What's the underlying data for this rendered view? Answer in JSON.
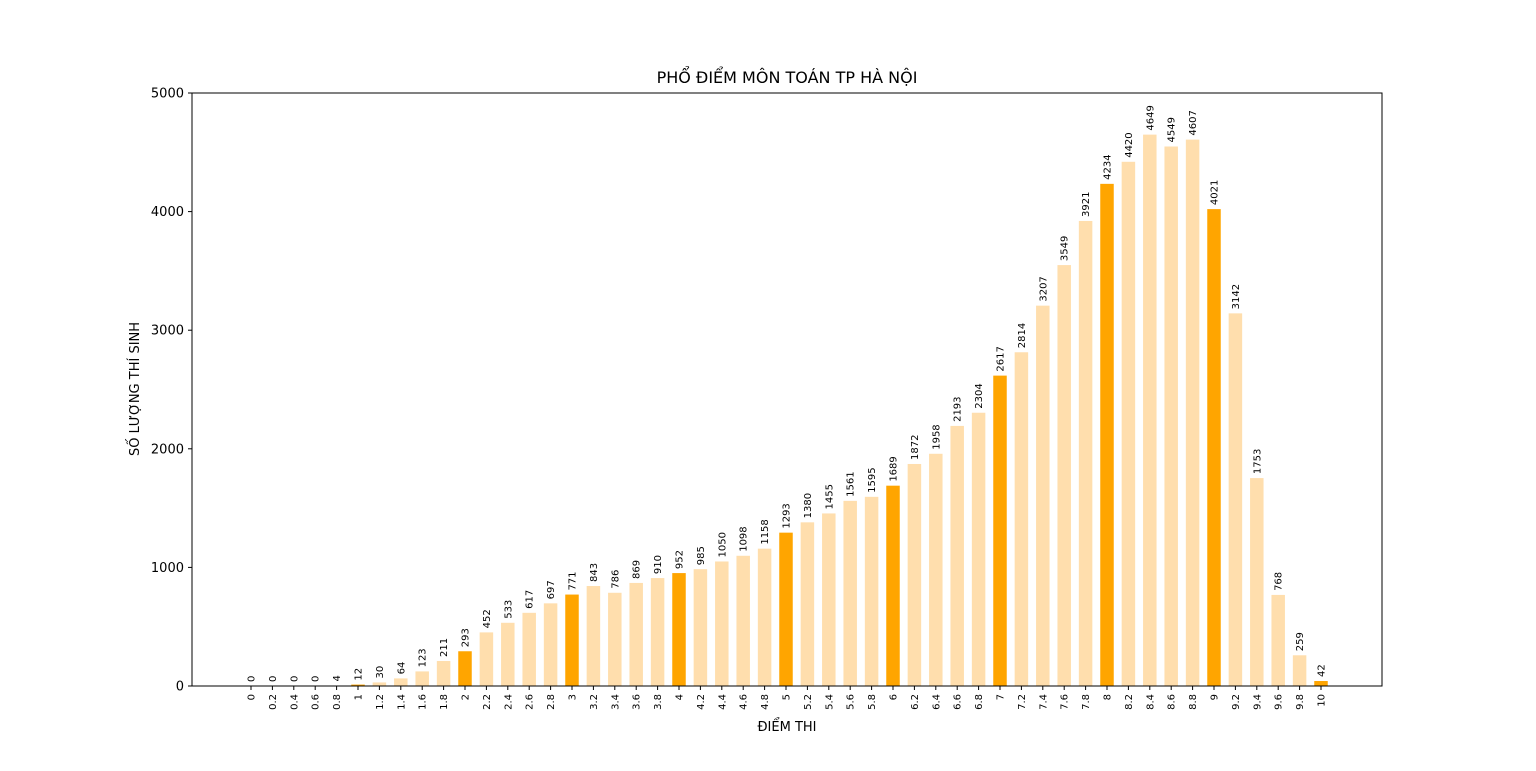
{
  "chart_data": {
    "type": "bar",
    "title": "PHỔ ĐIỂM MÔN TOÁN TP HÀ NỘI",
    "xlabel": "ĐIỂM THI",
    "ylabel": "SỐ LƯỢNG THÍ SINH",
    "ylim": [
      0,
      5000
    ],
    "yticks": [
      "0",
      "1000",
      "2000",
      "3000",
      "4000",
      "5000"
    ],
    "ytick_values": [
      0,
      1000,
      2000,
      3000,
      4000,
      5000
    ],
    "grid": false,
    "categories": [
      "0",
      "0.2",
      "0.4",
      "0.6",
      "0.8",
      "1",
      "1.2",
      "1.4",
      "1.6",
      "1.8",
      "2",
      "2.2",
      "2.4",
      "2.6",
      "2.8",
      "3",
      "3.2",
      "3.4",
      "3.6",
      "3.8",
      "4",
      "4.2",
      "4.4",
      "4.6",
      "4.8",
      "5",
      "5.2",
      "5.4",
      "5.6",
      "5.8",
      "6",
      "6.2",
      "6.4",
      "6.6",
      "6.8",
      "7",
      "7.2",
      "7.4",
      "7.6",
      "7.8",
      "8",
      "8.2",
      "8.4",
      "8.6",
      "8.8",
      "9",
      "9.2",
      "9.4",
      "9.6",
      "9.8",
      "10"
    ],
    "values": [
      0,
      0,
      0,
      0,
      4,
      12,
      30,
      64,
      123,
      211,
      293,
      452,
      533,
      617,
      697,
      771,
      843,
      786,
      869,
      910,
      952,
      985,
      1050,
      1098,
      1158,
      1293,
      1380,
      1455,
      1561,
      1595,
      1689,
      1872,
      1958,
      2193,
      2304,
      2617,
      2814,
      3207,
      3549,
      3921,
      4234,
      4420,
      4649,
      4549,
      4607,
      4021,
      3142,
      1753,
      768,
      259,
      42
    ],
    "colors": {
      "integer_score": "#ffa500",
      "other_score": "#ffdead"
    }
  }
}
